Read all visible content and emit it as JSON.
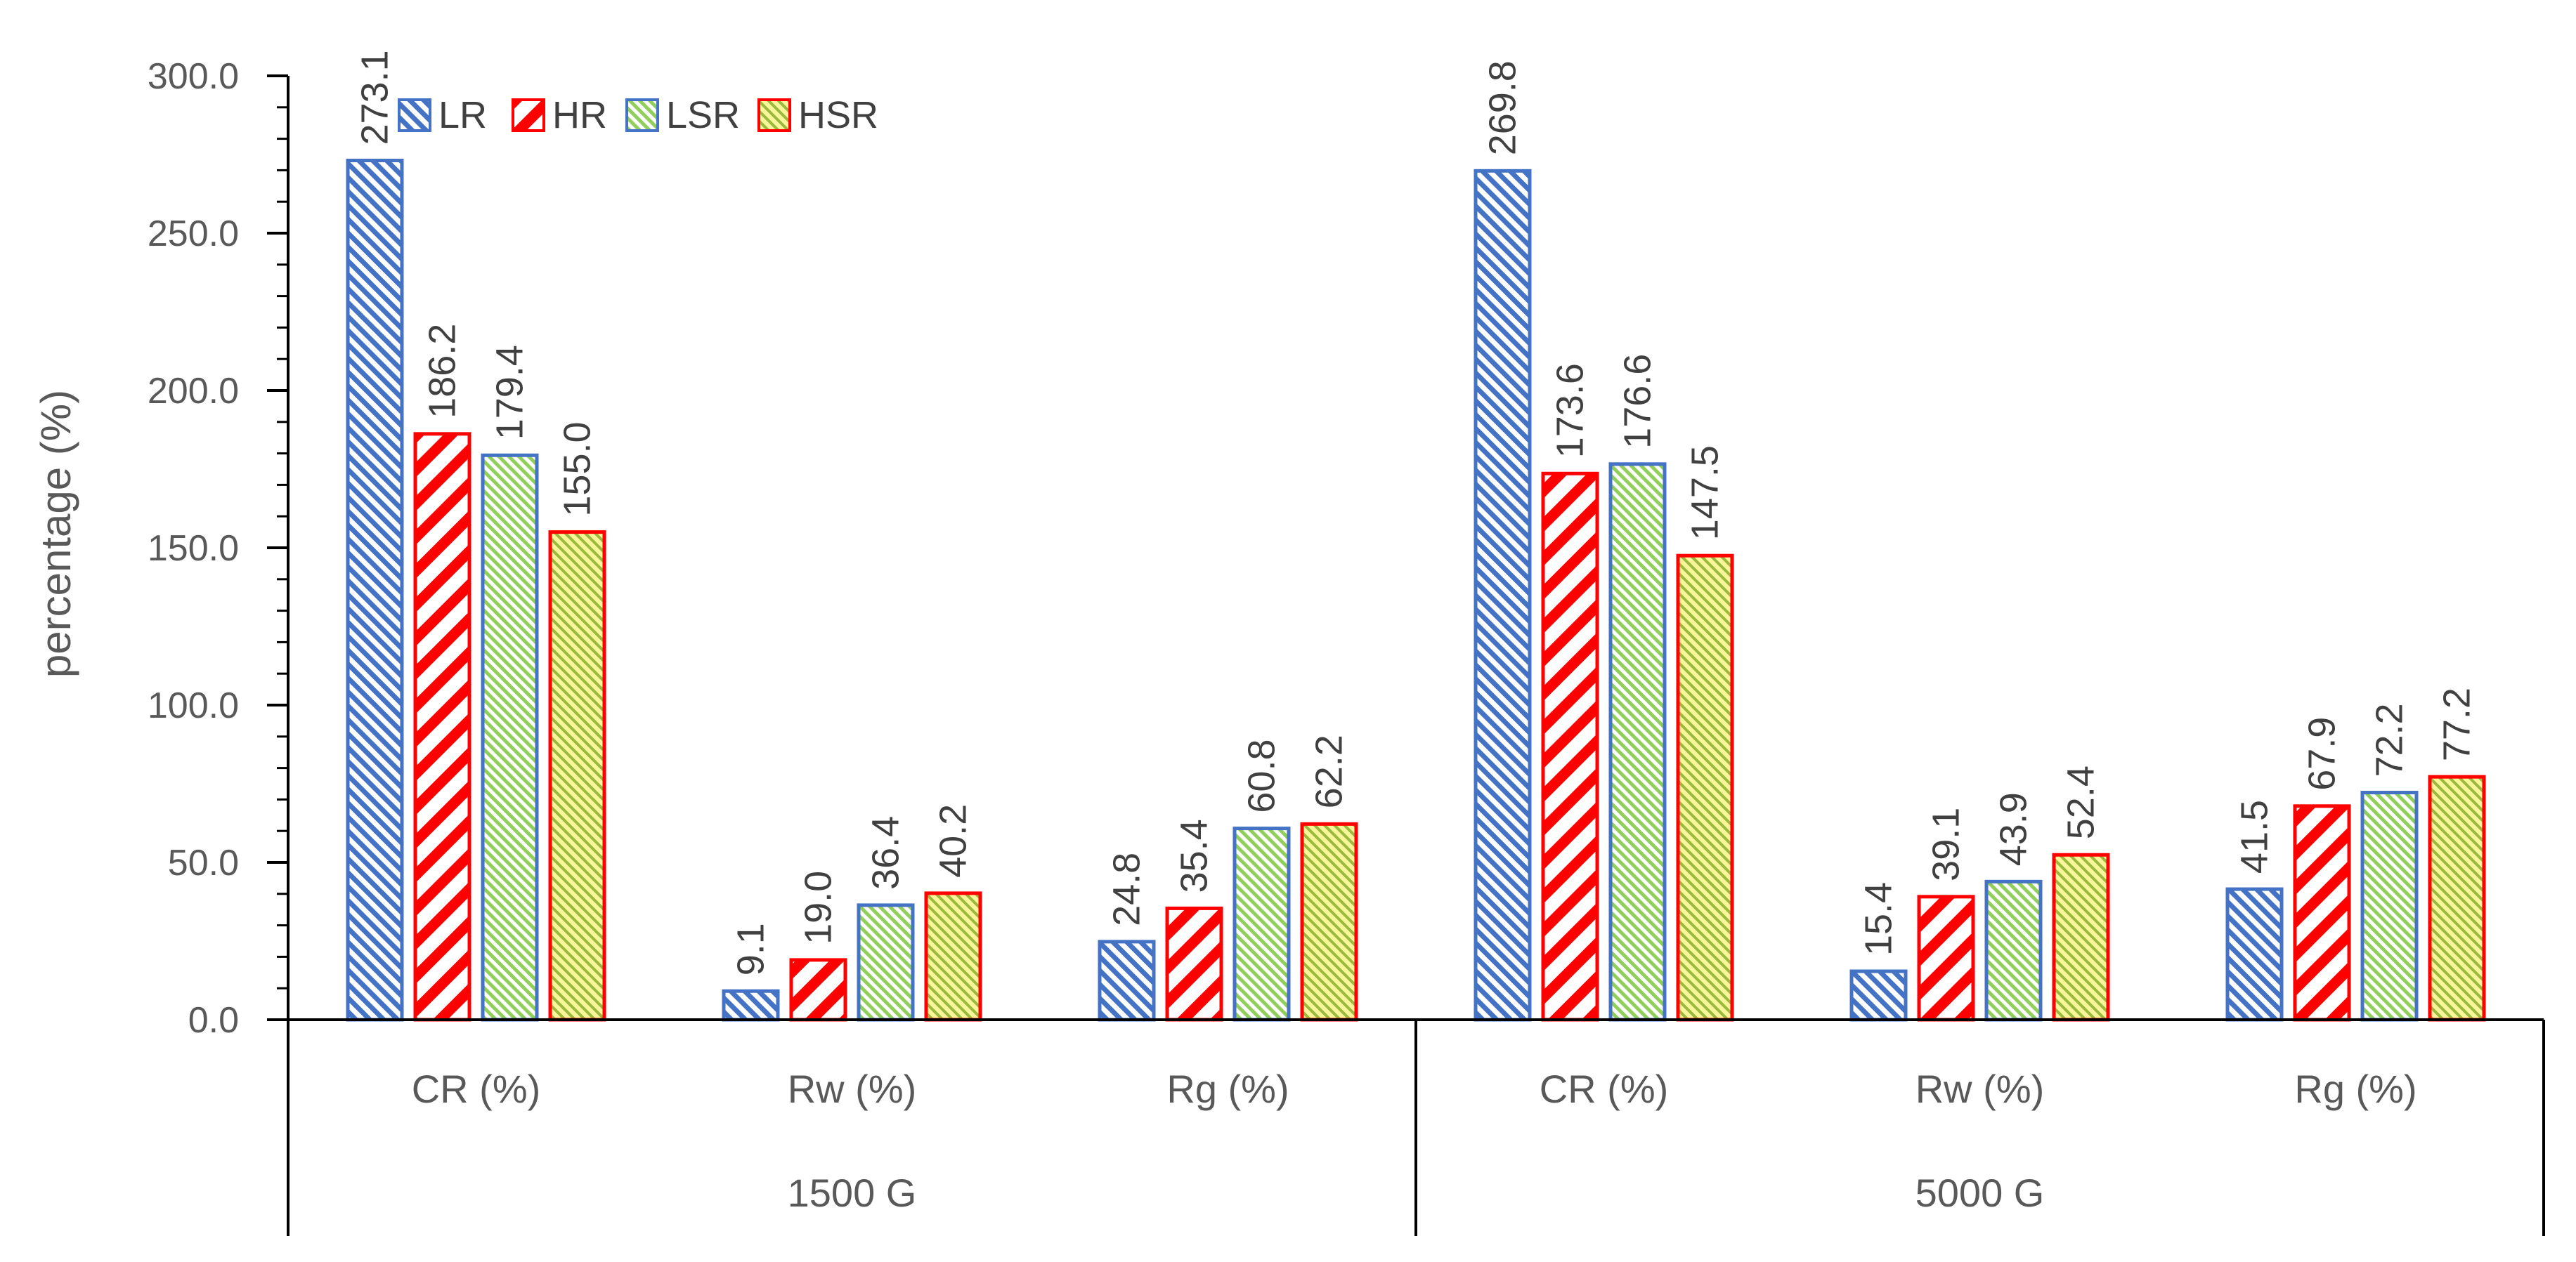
{
  "chart_data": {
    "type": "bar",
    "title": "",
    "ylabel": "percentage (%)",
    "xlabel": "",
    "ylim": [
      0,
      300
    ],
    "ytick_step": 50,
    "ytick_labels": [
      "0.0",
      "50.0",
      "100.0",
      "150.0",
      "200.0",
      "250.0",
      "300.0"
    ],
    "groups": [
      {
        "name": "1500 G",
        "categories": [
          "CR (%)",
          "Rw (%)",
          "Rg (%)"
        ]
      },
      {
        "name": "5000 G",
        "categories": [
          "CR (%)",
          "Rw (%)",
          "Rg (%)"
        ]
      }
    ],
    "categories": [
      "CR (%)",
      "Rw (%)",
      "Rg (%)",
      "CR (%)",
      "Rw (%)",
      "Rg (%)"
    ],
    "series": [
      {
        "name": "LR",
        "values": [
          273.1,
          9.1,
          24.8,
          269.8,
          15.4,
          41.5
        ],
        "labels": [
          "273.1",
          "9.1",
          "24.8",
          "269.8",
          "15.4",
          "41.5"
        ]
      },
      {
        "name": "HR",
        "values": [
          186.2,
          19.0,
          35.4,
          173.6,
          39.1,
          67.9
        ],
        "labels": [
          "186.2",
          "19.0",
          "35.4",
          "173.6",
          "39.1",
          "67.9"
        ]
      },
      {
        "name": "LSR",
        "values": [
          179.4,
          36.4,
          60.8,
          176.6,
          43.9,
          72.2
        ],
        "labels": [
          "179.4",
          "36.4",
          "60.8",
          "176.6",
          "43.9",
          "72.2"
        ]
      },
      {
        "name": "HSR",
        "values": [
          155.0,
          40.2,
          62.2,
          147.5,
          52.4,
          77.2
        ],
        "labels": [
          "155.0",
          "40.2",
          "62.2",
          "147.5",
          "52.4",
          "77.2"
        ]
      }
    ],
    "legend": {
      "position": "top-left"
    },
    "grid": false
  },
  "colors": {
    "LR": {
      "stroke": "#4472C4",
      "fill": "#4472C4",
      "bg": "#ffffff"
    },
    "HR": {
      "stroke": "#FF0000",
      "fill": "#FF0000",
      "bg": "#ffffff"
    },
    "LSR": {
      "stroke": "#4472C4",
      "fill": "#8FCF5A",
      "bg": "#ffffff"
    },
    "HSR": {
      "stroke": "#FF0000",
      "fill": "#9BB83F",
      "bg": "#F7F79A"
    },
    "axis": "#000000"
  }
}
